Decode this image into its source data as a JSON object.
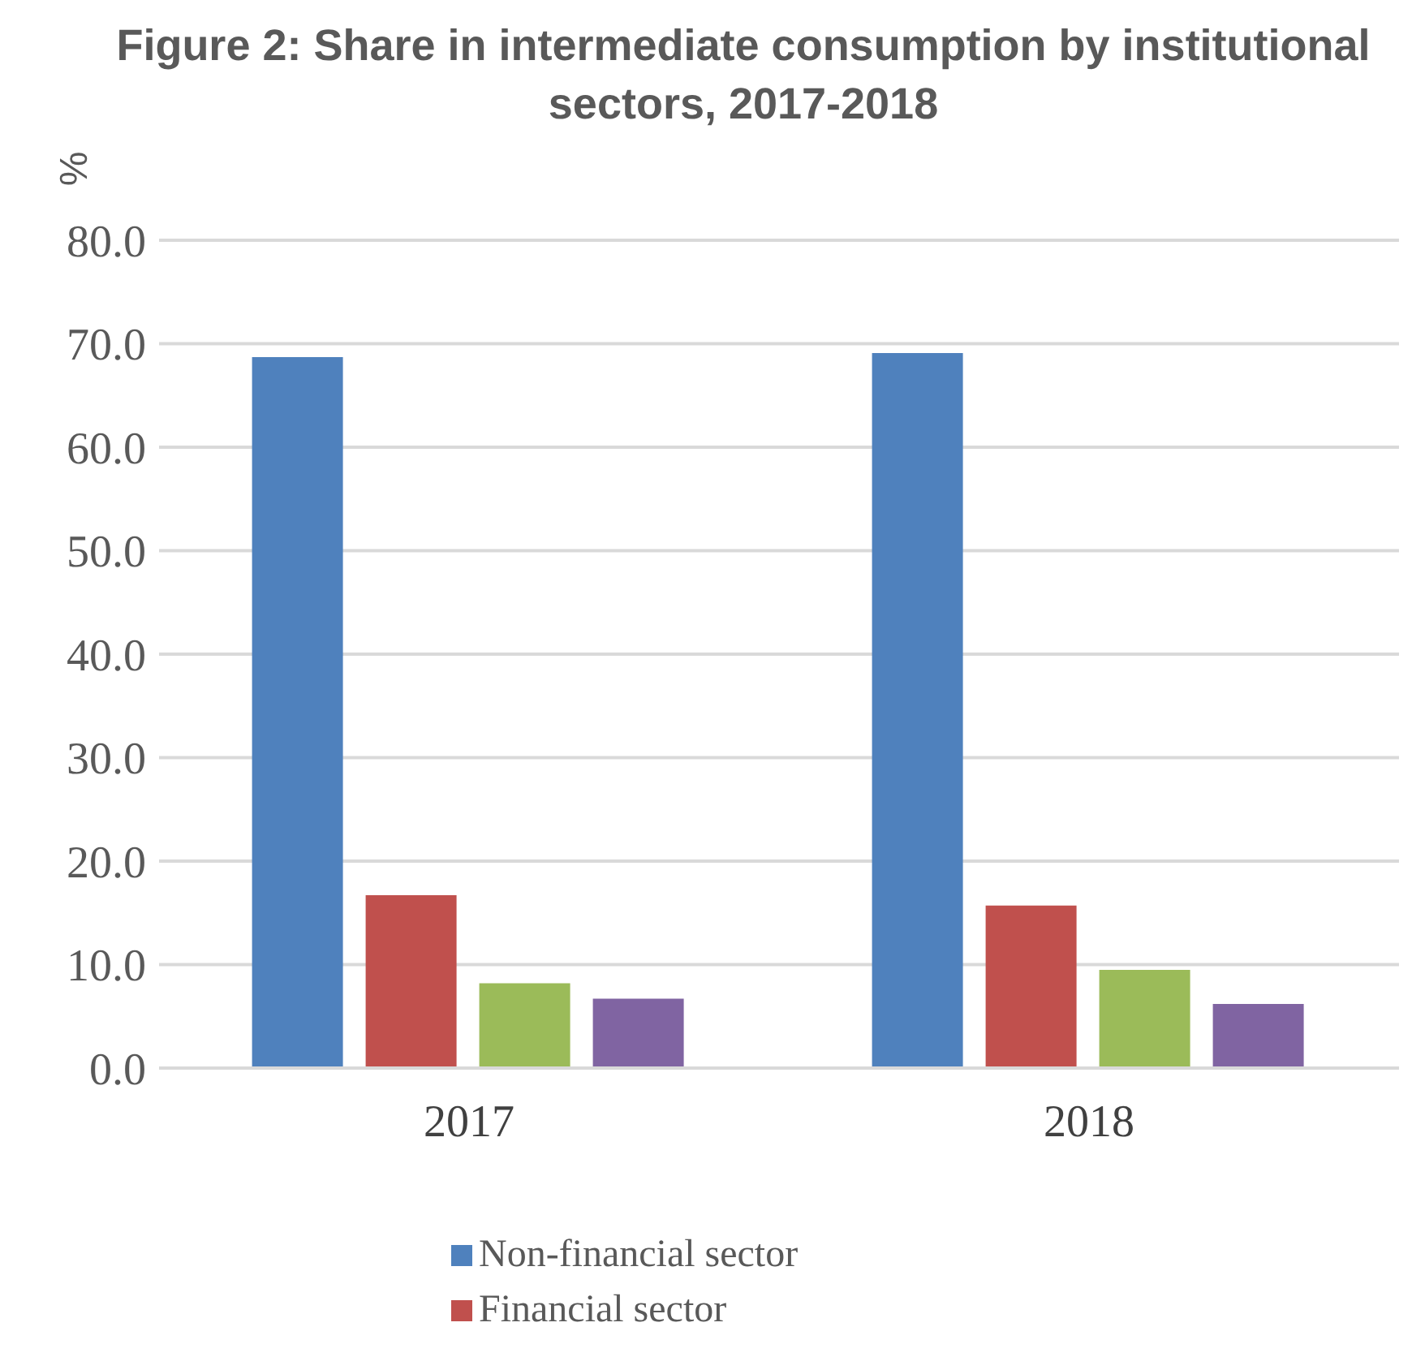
{
  "chart_data": {
    "type": "bar",
    "title": "Figure 2: Share in intermediate consumption by institutional sectors, 2017-2018",
    "ylabel": "%",
    "categories": [
      "2017",
      "2018"
    ],
    "series": [
      {
        "name": "Non-financial sector",
        "color": "#4f81bd",
        "values": [
          68.7,
          69.1
        ]
      },
      {
        "name": "Financial sector",
        "color": "#c0504d",
        "values": [
          16.7,
          15.7
        ]
      },
      {
        "color": "#9bbb59",
        "values": [
          8.2,
          9.5
        ]
      },
      {
        "color": "#8064a2",
        "values": [
          6.7,
          6.2
        ]
      }
    ],
    "ylim": [
      0,
      80
    ],
    "yticks": [
      {
        "value": 0,
        "label": "0.0"
      },
      {
        "value": 10,
        "label": "10.0"
      },
      {
        "value": 20,
        "label": "20.0"
      },
      {
        "value": 30,
        "label": "30.0"
      },
      {
        "value": 40,
        "label": "40.0"
      },
      {
        "value": 50,
        "label": "50.0"
      },
      {
        "value": 60,
        "label": "60.0"
      },
      {
        "value": 70,
        "label": "70.0"
      },
      {
        "value": 80,
        "label": "80.0"
      }
    ],
    "grid": "y",
    "legend": "bottom"
  }
}
